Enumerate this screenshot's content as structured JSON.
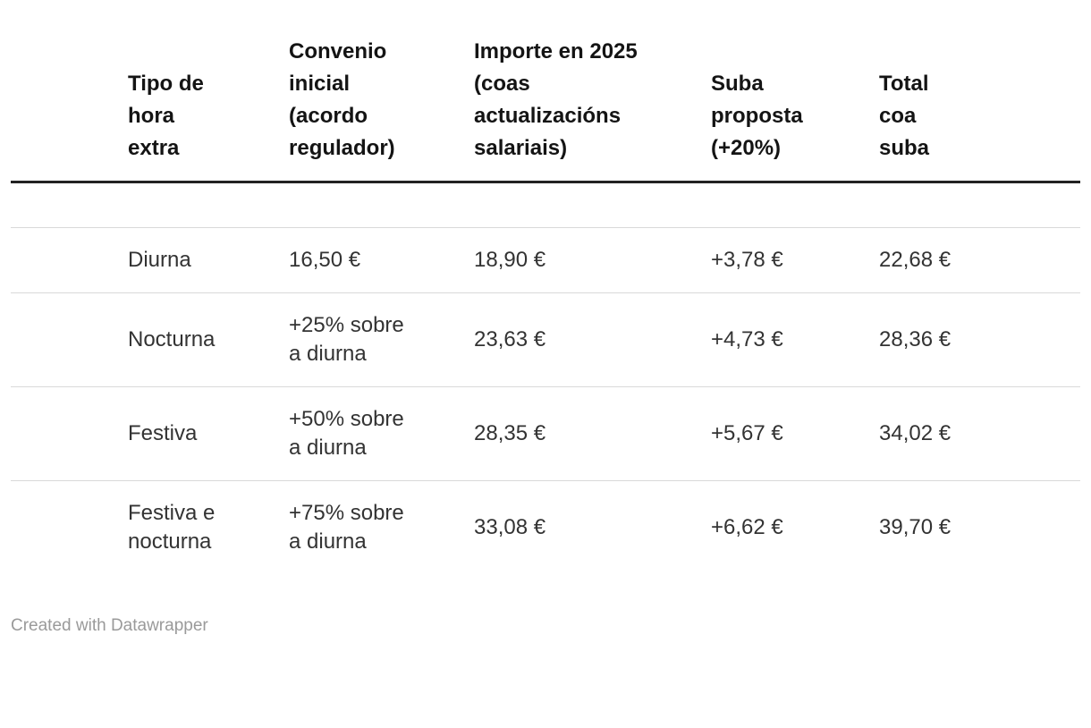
{
  "chart_data": {
    "type": "table",
    "title": "",
    "columns": [
      "Tipo de hora extra",
      "Convenio inicial (acordo regulador)",
      "Importe en 2025 (coas actualizacións salariais)",
      "Suba proposta (+20%)",
      "Total coa suba"
    ],
    "rows": [
      [
        "Diurna",
        "16,50 €",
        "18,90 €",
        "+3,78 €",
        "22,68 €"
      ],
      [
        "Nocturna",
        "+25% sobre a diurna",
        "23,63 €",
        "+4,73 €",
        "28,36 €"
      ],
      [
        "Festiva",
        "+50% sobre a diurna",
        "28,35 €",
        "+5,67 €",
        "34,02 €"
      ],
      [
        "Festiva e nocturna",
        "+75% sobre a diurna",
        "33,08 €",
        "+6,62 €",
        "39,70 €"
      ]
    ],
    "layout": {
      "grid": "horizontal-row-dividers",
      "header_rule": "thick",
      "first_column_indent": true
    }
  },
  "footer": {
    "credit": "Created with Datawrapper"
  },
  "colors": {
    "header_text": "#141414",
    "body_text": "#333333",
    "header_rule": "#222222",
    "row_divider": "#d9d9d9",
    "footer_text": "#9a9a9a"
  }
}
